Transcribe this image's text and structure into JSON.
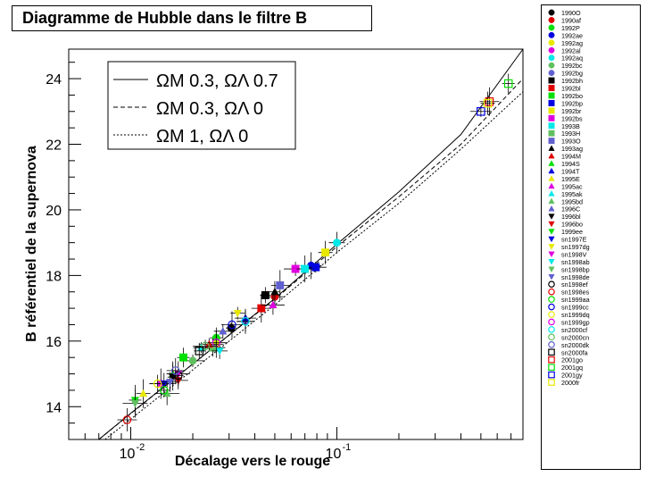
{
  "chart_data": {
    "type": "scatter",
    "title": "Diagramme de Hubble dans le filtre B",
    "xlabel": "Décalage vers le rouge",
    "ylabel": "B référentiel de la supernova",
    "x_scale": "log",
    "xlim": [
      0.005,
      0.8
    ],
    "ylim": [
      13,
      24.9
    ],
    "y_ticks": [
      14,
      16,
      18,
      20,
      22,
      24
    ],
    "x_tick_labels": [
      {
        "value": 0.01,
        "label": "10",
        "exp": "-2"
      },
      {
        "value": 0.1,
        "label": "10",
        "exp": "-1"
      }
    ],
    "models": [
      {
        "label": "ΩM 0.3, ΩΛ 0.7",
        "style": "solid",
        "points": [
          [
            0.007,
            13.0
          ],
          [
            0.01,
            13.8
          ],
          [
            0.02,
            15.3
          ],
          [
            0.05,
            17.3
          ],
          [
            0.1,
            18.95
          ],
          [
            0.2,
            20.55
          ],
          [
            0.4,
            22.3
          ],
          [
            0.8,
            24.9
          ]
        ]
      },
      {
        "label": "ΩM 0.3, ΩΛ 0",
        "style": "dashed",
        "points": [
          [
            0.007,
            13.0
          ],
          [
            0.01,
            13.79
          ],
          [
            0.02,
            15.3
          ],
          [
            0.05,
            17.28
          ],
          [
            0.1,
            18.88
          ],
          [
            0.2,
            20.4
          ],
          [
            0.4,
            22.0
          ],
          [
            0.8,
            24.0
          ]
        ]
      },
      {
        "label": "ΩM 1, ΩΛ 0",
        "style": "dotted",
        "points": [
          [
            0.0075,
            13.0
          ],
          [
            0.01,
            13.62
          ],
          [
            0.02,
            15.12
          ],
          [
            0.05,
            17.1
          ],
          [
            0.1,
            18.7
          ],
          [
            0.2,
            20.2
          ],
          [
            0.4,
            21.85
          ],
          [
            0.8,
            23.6
          ]
        ]
      }
    ],
    "series": [
      {
        "name": "1990O",
        "marker": "circle",
        "filled": true,
        "color": "#000000",
        "x": 0.0307,
        "y": 16.4
      },
      {
        "name": "1990af",
        "marker": "circle",
        "filled": true,
        "color": "#e00000",
        "x": 0.05,
        "y": 17.35
      },
      {
        "name": "1992P",
        "marker": "circle",
        "filled": true,
        "color": "#00e000",
        "x": 0.026,
        "y": 16.1
      },
      {
        "name": "1992ae",
        "marker": "circle",
        "filled": true,
        "color": "#0000e0",
        "x": 0.075,
        "y": 18.3
      },
      {
        "name": "1992ag",
        "marker": "circle",
        "filled": true,
        "color": "#e8e800",
        "x": 0.026,
        "y": 15.9
      },
      {
        "name": "1992al",
        "marker": "circle",
        "filled": true,
        "color": "#e000e0",
        "x": 0.014,
        "y": 14.7
      },
      {
        "name": "1992aq",
        "marker": "circle",
        "filled": true,
        "color": "#00e8e8",
        "x": 0.1,
        "y": 19.0
      },
      {
        "name": "1992bc",
        "marker": "circle",
        "filled": true,
        "color": "#60c060",
        "x": 0.02,
        "y": 15.4
      },
      {
        "name": "1992bg",
        "marker": "circle",
        "filled": true,
        "color": "#6060d0",
        "x": 0.036,
        "y": 16.6
      },
      {
        "name": "1992bh",
        "marker": "square",
        "filled": true,
        "color": "#000000",
        "x": 0.045,
        "y": 17.4
      },
      {
        "name": "1992bl",
        "marker": "square",
        "filled": true,
        "color": "#e00000",
        "x": 0.043,
        "y": 17.0
      },
      {
        "name": "1992bo",
        "marker": "square",
        "filled": true,
        "color": "#00e000",
        "x": 0.018,
        "y": 15.5
      },
      {
        "name": "1992bp",
        "marker": "square",
        "filled": true,
        "color": "#0000e0",
        "x": 0.079,
        "y": 18.25
      },
      {
        "name": "1992br",
        "marker": "square",
        "filled": true,
        "color": "#e8e800",
        "x": 0.088,
        "y": 18.7
      },
      {
        "name": "1992bs",
        "marker": "square",
        "filled": true,
        "color": "#e000e0",
        "x": 0.063,
        "y": 18.2
      },
      {
        "name": "1993B",
        "marker": "square",
        "filled": true,
        "color": "#00e8e8",
        "x": 0.07,
        "y": 18.2
      },
      {
        "name": "1993H",
        "marker": "square",
        "filled": true,
        "color": "#60c060",
        "x": 0.025,
        "y": 15.8
      },
      {
        "name": "1993O",
        "marker": "square",
        "filled": true,
        "color": "#6060d0",
        "x": 0.053,
        "y": 17.7
      },
      {
        "name": "1993ag",
        "marker": "triangle-up",
        "filled": true,
        "color": "#000000",
        "x": 0.05,
        "y": 17.5
      },
      {
        "name": "1994M",
        "marker": "triangle-up",
        "filled": true,
        "color": "#e00000",
        "x": 0.024,
        "y": 15.9
      },
      {
        "name": "1994S",
        "marker": "triangle-up",
        "filled": true,
        "color": "#00e000",
        "x": 0.016,
        "y": 15.0
      },
      {
        "name": "1994T",
        "marker": "triangle-up",
        "filled": true,
        "color": "#0000e0",
        "x": 0.036,
        "y": 16.7
      },
      {
        "name": "1995E",
        "marker": "triangle-up",
        "filled": true,
        "color": "#e8e800",
        "x": 0.0115,
        "y": 14.4
      },
      {
        "name": "1995ac",
        "marker": "triangle-up",
        "filled": true,
        "color": "#e000e0",
        "x": 0.049,
        "y": 17.1
      },
      {
        "name": "1995ak",
        "marker": "triangle-up",
        "filled": true,
        "color": "#00e8e8",
        "x": 0.022,
        "y": 15.8
      },
      {
        "name": "1995bd",
        "marker": "triangle-up",
        "filled": true,
        "color": "#60c060",
        "x": 0.015,
        "y": 14.4
      },
      {
        "name": "1996C",
        "marker": "triangle-up",
        "filled": true,
        "color": "#6060d0",
        "x": 0.028,
        "y": 16.3
      },
      {
        "name": "1996bl",
        "marker": "triangle-down",
        "filled": true,
        "color": "#000000",
        "x": 0.016,
        "y": 14.9
      },
      {
        "name": "1996bo",
        "marker": "triangle-down",
        "filled": true,
        "color": "#e00000",
        "x": 0.017,
        "y": 14.8
      },
      {
        "name": "1999ee",
        "marker": "triangle-down",
        "filled": true,
        "color": "#00e000",
        "x": 0.0105,
        "y": 14.2
      },
      {
        "name": "sn1997E",
        "marker": "triangle-down",
        "filled": true,
        "color": "#0000e0",
        "x": 0.0145,
        "y": 14.7
      },
      {
        "name": "sn1997dg",
        "marker": "triangle-down",
        "filled": true,
        "color": "#e8e800",
        "x": 0.033,
        "y": 16.85
      },
      {
        "name": "sn1998V",
        "marker": "triangle-down",
        "filled": true,
        "color": "#e000e0",
        "x": 0.017,
        "y": 15.0
      },
      {
        "name": "sn1998ab",
        "marker": "triangle-down",
        "filled": true,
        "color": "#00e8e8",
        "x": 0.027,
        "y": 15.7
      },
      {
        "name": "sn1998bp",
        "marker": "triangle-down",
        "filled": true,
        "color": "#60c060",
        "x": 0.0105,
        "y": 14.1
      },
      {
        "name": "sn1998de",
        "marker": "triangle-down",
        "filled": true,
        "color": "#6060d0",
        "x": 0.0155,
        "y": 14.75
      },
      {
        "name": "sn1998ef",
        "marker": "circle",
        "filled": false,
        "color": "#000000",
        "x": 0.017,
        "y": 14.95
      },
      {
        "name": "sn1998es",
        "marker": "circle",
        "filled": false,
        "color": "#e00000",
        "x": 0.0096,
        "y": 13.6
      },
      {
        "name": "sn1999aa",
        "marker": "circle",
        "filled": false,
        "color": "#00e000",
        "x": 0.0145,
        "y": 14.5
      },
      {
        "name": "sn1999cc",
        "marker": "circle",
        "filled": false,
        "color": "#0000e0",
        "x": 0.031,
        "y": 16.5
      },
      {
        "name": "sn1999dq",
        "marker": "circle",
        "filled": false,
        "color": "#e8e800",
        "x": 0.0135,
        "y": 14.7
      },
      {
        "name": "sn1999gp",
        "marker": "circle",
        "filled": false,
        "color": "#e000e0",
        "x": 0.026,
        "y": 15.95
      },
      {
        "name": "sn2000cf",
        "marker": "circle",
        "filled": false,
        "color": "#00e8e8",
        "x": 0.036,
        "y": 16.6
      },
      {
        "name": "sn2000cn",
        "marker": "circle",
        "filled": false,
        "color": "#60c060",
        "x": 0.023,
        "y": 15.85
      },
      {
        "name": "sn2000dk",
        "marker": "circle",
        "filled": false,
        "color": "#6060d0",
        "x": 0.0165,
        "y": 15.1
      },
      {
        "name": "sn2000fa",
        "marker": "square",
        "filled": false,
        "color": "#000000",
        "x": 0.0215,
        "y": 15.7
      },
      {
        "name": "2001go",
        "marker": "square",
        "filled": false,
        "color": "#e00000",
        "x": 0.55,
        "y": 23.3
      },
      {
        "name": "2001gq",
        "marker": "square",
        "filled": false,
        "color": "#00e000",
        "x": 0.68,
        "y": 23.85
      },
      {
        "name": "2001gy",
        "marker": "square",
        "filled": false,
        "color": "#0000e0",
        "x": 0.5,
        "y": 23.0
      },
      {
        "name": "2000fr",
        "marker": "square",
        "filled": false,
        "color": "#e8e800",
        "x": 0.54,
        "y": 23.25
      }
    ]
  }
}
